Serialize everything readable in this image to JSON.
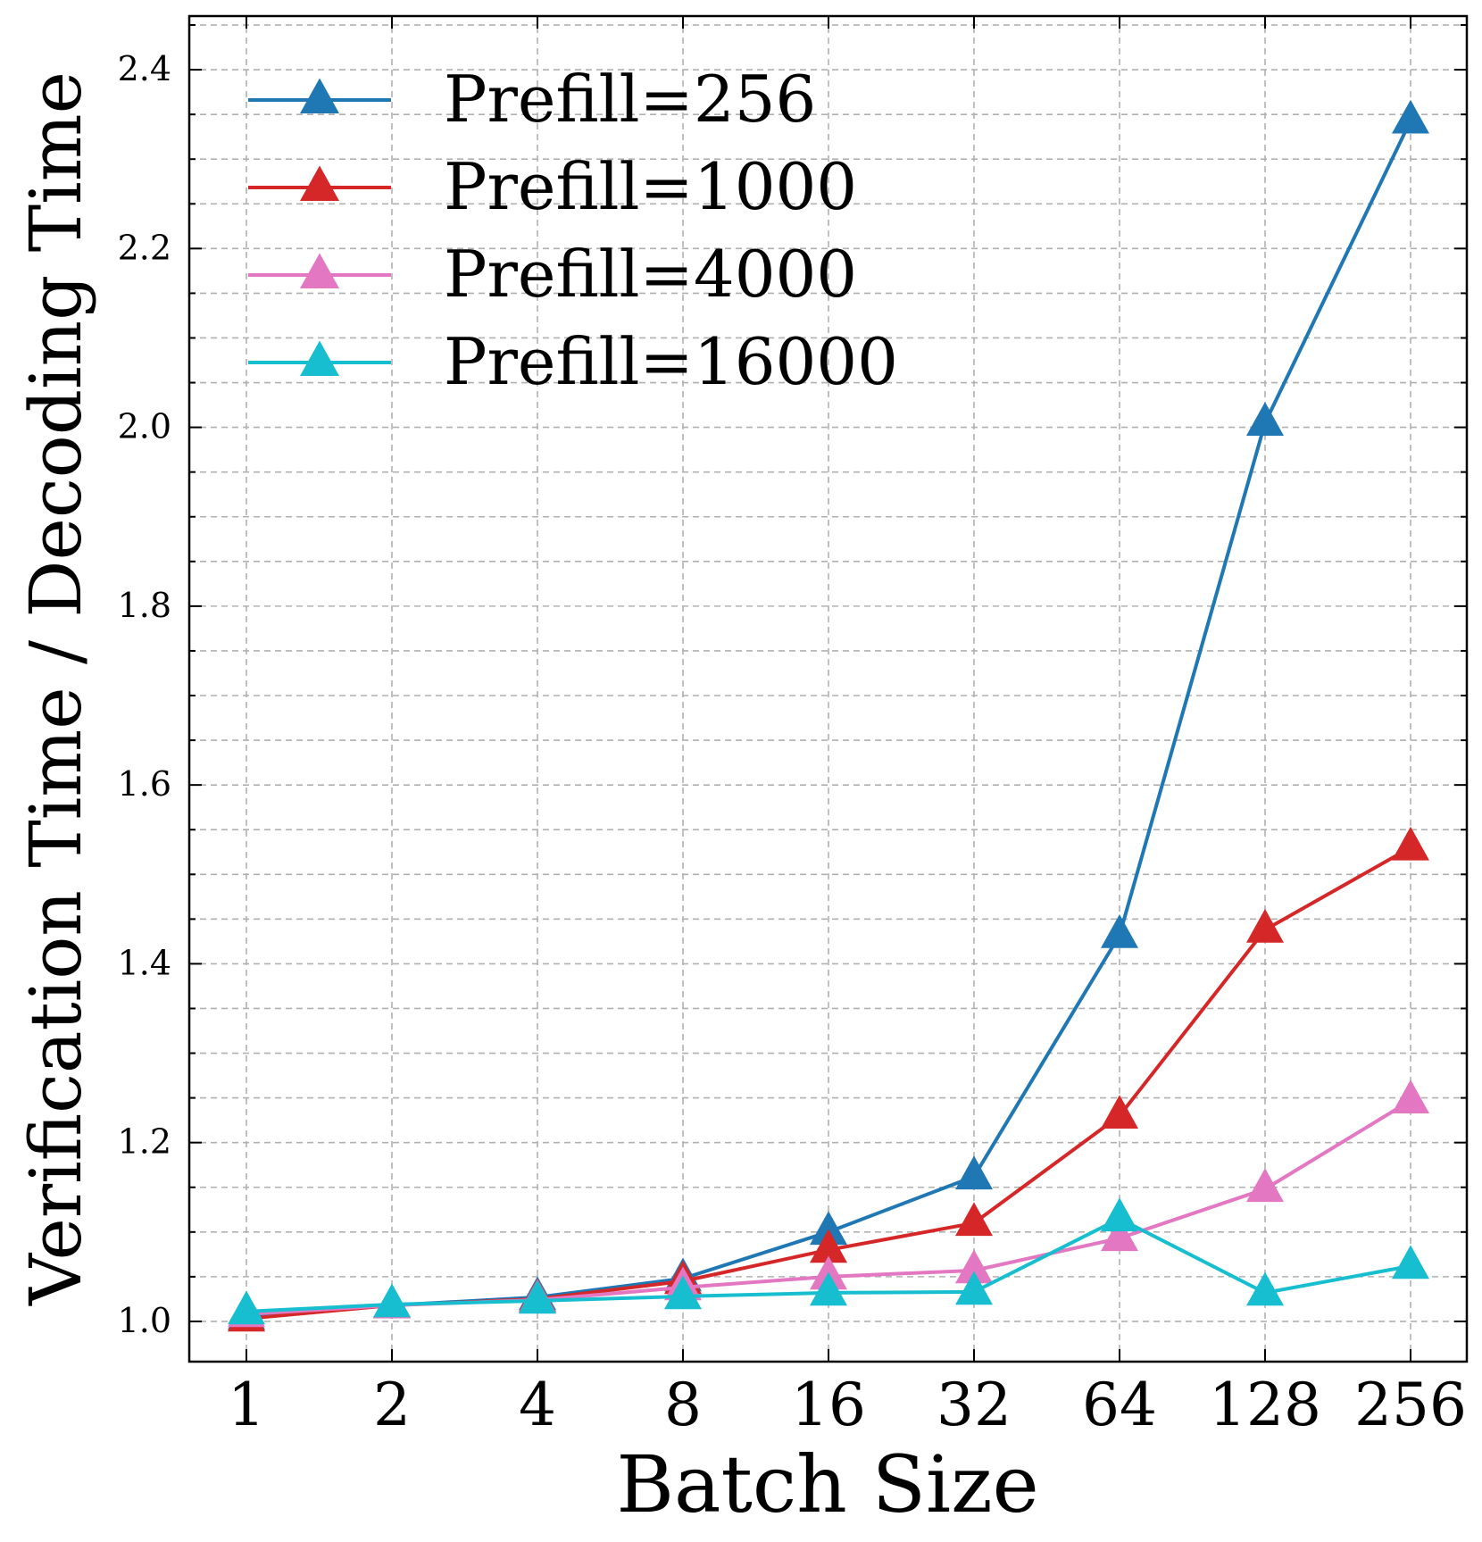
{
  "chart_data": {
    "type": "line",
    "xlabel": "Batch Size",
    "ylabel": "Verification Time / Decoding Time",
    "categories": [
      "1",
      "2",
      "4",
      "8",
      "16",
      "32",
      "64",
      "128",
      "256"
    ],
    "yticks": [
      "1.0",
      "1.2",
      "1.4",
      "1.6",
      "1.8",
      "2.0",
      "2.2",
      "2.4"
    ],
    "ylim": [
      0.955,
      2.46
    ],
    "grid": true,
    "legend_position": "top-left",
    "marker": "triangle",
    "series": [
      {
        "name": "Prefill=256",
        "color": "#1f77b4",
        "values": [
          1.005,
          1.018,
          1.027,
          1.048,
          1.1,
          1.162,
          1.432,
          2.005,
          2.343
        ]
      },
      {
        "name": "Prefill=1000",
        "color": "#d62728",
        "values": [
          1.003,
          1.018,
          1.025,
          1.045,
          1.08,
          1.11,
          1.23,
          1.438,
          1.53
        ]
      },
      {
        "name": "Prefill=4000",
        "color": "#e377c2",
        "values": [
          1.008,
          1.018,
          1.024,
          1.038,
          1.05,
          1.057,
          1.093,
          1.148,
          1.247
        ]
      },
      {
        "name": "Prefill=16000",
        "color": "#17becf",
        "values": [
          1.011,
          1.019,
          1.023,
          1.028,
          1.032,
          1.033,
          1.115,
          1.032,
          1.062
        ]
      }
    ]
  }
}
